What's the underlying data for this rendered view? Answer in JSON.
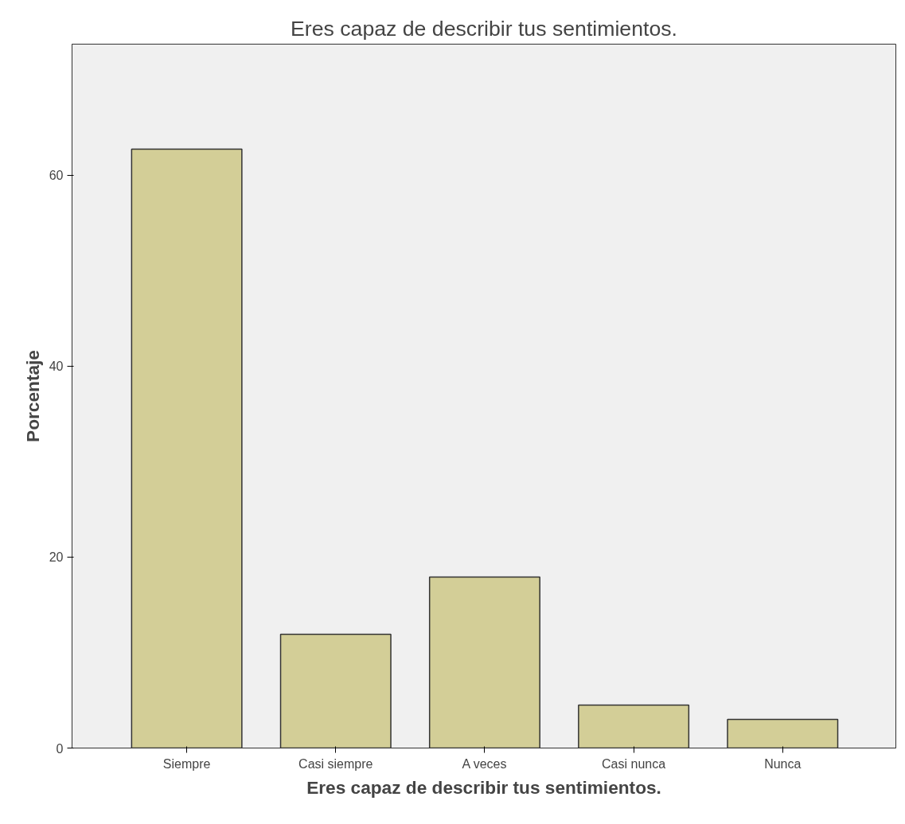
{
  "chart_data": {
    "type": "bar",
    "title": "Eres capaz de describir tus sentimientos.",
    "xlabel": "Eres capaz de describir tus sentimientos.",
    "ylabel": "Porcentaje",
    "categories": [
      "Siempre",
      "Casi siempre",
      "A veces",
      "Casi nunca",
      "Nunca"
    ],
    "values": [
      62.7,
      11.9,
      17.9,
      4.5,
      3.0
    ],
    "color": "#d3ce97",
    "ylim": [
      0,
      73.7
    ],
    "yticks": [
      0,
      20,
      40,
      60
    ],
    "grid": false
  }
}
